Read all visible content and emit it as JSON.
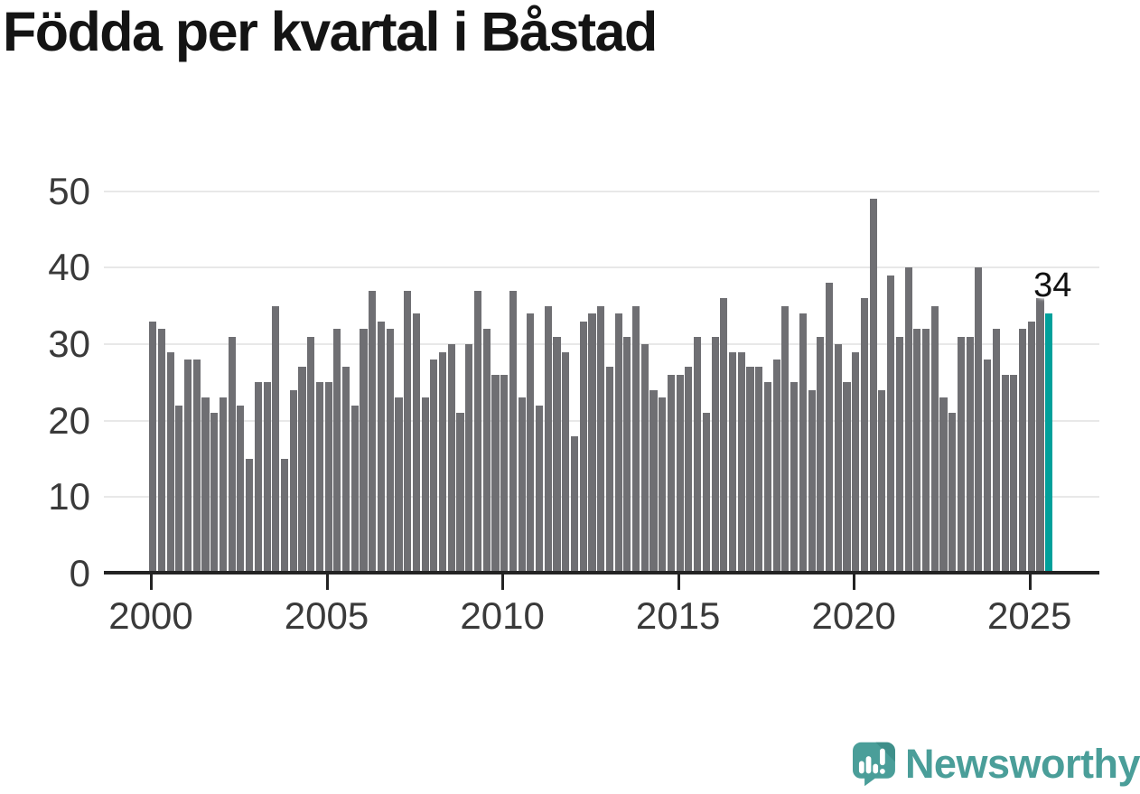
{
  "title": "Födda per kvartal i Båstad",
  "chart_data": {
    "type": "bar",
    "title": "Födda per kvartal i Båstad",
    "x_unit": "quarter",
    "x_start": "2000 Q1",
    "x_end": "2025 Q3",
    "values": [
      33,
      32,
      29,
      22,
      28,
      28,
      23,
      21,
      23,
      31,
      22,
      15,
      25,
      25,
      35,
      15,
      24,
      27,
      31,
      25,
      25,
      32,
      27,
      22,
      32,
      37,
      33,
      32,
      23,
      37,
      34,
      23,
      28,
      29,
      30,
      21,
      30,
      37,
      32,
      26,
      26,
      37,
      23,
      34,
      22,
      35,
      31,
      29,
      18,
      33,
      34,
      35,
      27,
      34,
      31,
      35,
      30,
      24,
      23,
      26,
      26,
      27,
      31,
      21,
      31,
      36,
      29,
      29,
      27,
      27,
      25,
      28,
      35,
      25,
      34,
      24,
      31,
      38,
      30,
      25,
      29,
      36,
      49,
      24,
      39,
      31,
      40,
      32,
      32,
      35,
      23,
      21,
      31,
      31,
      40,
      28,
      32,
      26,
      26,
      32,
      33,
      36,
      34
    ],
    "ylim": [
      0,
      50
    ],
    "yticks": [
      0,
      10,
      20,
      30,
      40,
      50
    ],
    "xticks": [
      "2000",
      "2005",
      "2010",
      "2015",
      "2020",
      "2025"
    ],
    "xlabel": "",
    "ylabel": "",
    "grid": "horizontal",
    "legend": "none",
    "bar_color": "#6f6f73",
    "highlight_color": "#00a09b",
    "highlight_last": true,
    "annotation": {
      "text": "34",
      "target": "last-bar"
    }
  },
  "branding": {
    "logo_text": "Newsworthy",
    "logo_color": "#4a9e99"
  }
}
